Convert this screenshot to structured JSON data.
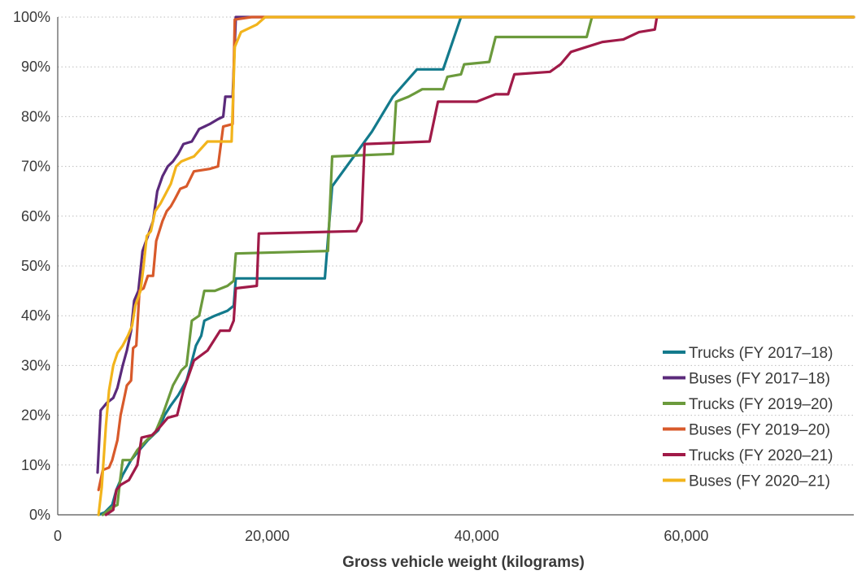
{
  "chart_data": {
    "type": "line",
    "title": "",
    "xlabel": "Gross vehicle weight (kilograms)",
    "ylabel": "",
    "xlim": [
      0,
      76000
    ],
    "ylim": [
      0,
      100
    ],
    "x_ticks": [
      0,
      20000,
      40000,
      60000
    ],
    "x_tick_labels": [
      "0",
      "20,000",
      "40,000",
      "60,000"
    ],
    "y_ticks": [
      0,
      10,
      20,
      30,
      40,
      50,
      60,
      70,
      80,
      90,
      100
    ],
    "y_tick_labels": [
      "0%",
      "10%",
      "20%",
      "30%",
      "40%",
      "50%",
      "60%",
      "70%",
      "80%",
      "90%",
      "100%"
    ],
    "grid": "horizontal dotted",
    "legend_position": "bottom-right",
    "series": [
      {
        "name": "Trucks (FY 2017–18)",
        "color": "#137a8c",
        "points": [
          [
            3900,
            0
          ],
          [
            4500,
            0.5
          ],
          [
            5200,
            2
          ],
          [
            5600,
            5
          ],
          [
            6200,
            8
          ],
          [
            7000,
            11
          ],
          [
            7800,
            13
          ],
          [
            8600,
            15
          ],
          [
            9600,
            17
          ],
          [
            10200,
            20
          ],
          [
            10800,
            22
          ],
          [
            11500,
            24
          ],
          [
            12300,
            27
          ],
          [
            12700,
            30
          ],
          [
            13200,
            34
          ],
          [
            13700,
            36
          ],
          [
            14000,
            39
          ],
          [
            15000,
            40
          ],
          [
            16200,
            41
          ],
          [
            16800,
            42
          ],
          [
            17000,
            47.5
          ],
          [
            25500,
            47.5
          ],
          [
            26200,
            66
          ],
          [
            30000,
            77
          ],
          [
            32000,
            84
          ],
          [
            34300,
            89.5
          ],
          [
            36800,
            89.5
          ],
          [
            38500,
            100
          ],
          [
            76000,
            100
          ]
        ]
      },
      {
        "name": "Buses (FY 2017–18)",
        "color": "#5b2a7b",
        "points": [
          [
            3800,
            8.5
          ],
          [
            4100,
            21
          ],
          [
            4700,
            22.5
          ],
          [
            5300,
            23.5
          ],
          [
            5700,
            25.5
          ],
          [
            6200,
            30
          ],
          [
            6600,
            33
          ],
          [
            7000,
            37
          ],
          [
            7300,
            43
          ],
          [
            7700,
            45
          ],
          [
            8100,
            53
          ],
          [
            8600,
            56
          ],
          [
            9100,
            59
          ],
          [
            9500,
            65
          ],
          [
            10000,
            68
          ],
          [
            10500,
            70
          ],
          [
            11000,
            71
          ],
          [
            11500,
            72.5
          ],
          [
            12000,
            74.5
          ],
          [
            12800,
            75
          ],
          [
            13500,
            77.5
          ],
          [
            14500,
            78.5
          ],
          [
            15300,
            79.5
          ],
          [
            15800,
            80
          ],
          [
            16000,
            84
          ],
          [
            16700,
            84
          ],
          [
            17000,
            100
          ],
          [
            76000,
            100
          ]
        ]
      },
      {
        "name": "Trucks (FY 2019–20)",
        "color": "#6b9a3c",
        "points": [
          [
            4300,
            0
          ],
          [
            5200,
            1.5
          ],
          [
            5700,
            2
          ],
          [
            5900,
            6
          ],
          [
            6200,
            11
          ],
          [
            7000,
            11
          ],
          [
            7600,
            13
          ],
          [
            8500,
            15
          ],
          [
            9300,
            16.5
          ],
          [
            10000,
            20
          ],
          [
            11000,
            26
          ],
          [
            11800,
            29
          ],
          [
            12300,
            30
          ],
          [
            12800,
            39
          ],
          [
            13500,
            40
          ],
          [
            14000,
            45
          ],
          [
            15000,
            45
          ],
          [
            16200,
            46
          ],
          [
            16800,
            47
          ],
          [
            17000,
            52.5
          ],
          [
            25800,
            53
          ],
          [
            26200,
            72
          ],
          [
            32000,
            72.5
          ],
          [
            32300,
            83
          ],
          [
            33500,
            84
          ],
          [
            34800,
            85.5
          ],
          [
            36800,
            85.5
          ],
          [
            37200,
            88
          ],
          [
            38500,
            88.5
          ],
          [
            38800,
            90.5
          ],
          [
            41200,
            91
          ],
          [
            41800,
            96
          ],
          [
            50500,
            96
          ],
          [
            51000,
            100
          ],
          [
            76000,
            100
          ]
        ]
      },
      {
        "name": "Buses (FY 2019–20)",
        "color": "#d85a2b",
        "points": [
          [
            3900,
            5
          ],
          [
            4300,
            9
          ],
          [
            4900,
            9.5
          ],
          [
            5200,
            11
          ],
          [
            5700,
            15
          ],
          [
            6000,
            20
          ],
          [
            6300,
            23
          ],
          [
            6600,
            26
          ],
          [
            7000,
            27
          ],
          [
            7200,
            33.5
          ],
          [
            7500,
            34
          ],
          [
            7800,
            45
          ],
          [
            8200,
            45.5
          ],
          [
            8600,
            48
          ],
          [
            9100,
            48
          ],
          [
            9400,
            55
          ],
          [
            10000,
            59
          ],
          [
            10400,
            61
          ],
          [
            10800,
            62
          ],
          [
            11200,
            63.5
          ],
          [
            11700,
            65.5
          ],
          [
            12300,
            66
          ],
          [
            13000,
            69
          ],
          [
            14500,
            69.5
          ],
          [
            15300,
            70
          ],
          [
            15800,
            78
          ],
          [
            16700,
            78.5
          ],
          [
            16900,
            99.5
          ],
          [
            18500,
            100
          ],
          [
            76000,
            100
          ]
        ]
      },
      {
        "name": "Trucks (FY 2020–21)",
        "color": "#a01a48",
        "points": [
          [
            4600,
            0
          ],
          [
            5300,
            1
          ],
          [
            5600,
            5
          ],
          [
            6000,
            6
          ],
          [
            6800,
            7
          ],
          [
            7600,
            10
          ],
          [
            8000,
            15.5
          ],
          [
            9000,
            16
          ],
          [
            9700,
            17.5
          ],
          [
            10500,
            19.5
          ],
          [
            11400,
            20
          ],
          [
            12000,
            25
          ],
          [
            13000,
            31
          ],
          [
            14300,
            33
          ],
          [
            15500,
            37
          ],
          [
            16400,
            37
          ],
          [
            16800,
            39
          ],
          [
            17000,
            45.5
          ],
          [
            19000,
            46
          ],
          [
            19200,
            56.5
          ],
          [
            28500,
            57
          ],
          [
            29000,
            59
          ],
          [
            29300,
            74.5
          ],
          [
            35500,
            75
          ],
          [
            36300,
            83
          ],
          [
            40000,
            83
          ],
          [
            41800,
            84.5
          ],
          [
            43000,
            84.5
          ],
          [
            43600,
            88.5
          ],
          [
            47000,
            89
          ],
          [
            48000,
            90.5
          ],
          [
            49000,
            93
          ],
          [
            50500,
            94
          ],
          [
            52000,
            95
          ],
          [
            54000,
            95.5
          ],
          [
            55500,
            97
          ],
          [
            57000,
            97.5
          ],
          [
            57200,
            100
          ],
          [
            76000,
            100
          ]
        ]
      },
      {
        "name": "Buses (FY 2020–21)",
        "color": "#f2b41c",
        "points": [
          [
            3900,
            0
          ],
          [
            4200,
            5.5
          ],
          [
            4600,
            18
          ],
          [
            4900,
            25
          ],
          [
            5300,
            30
          ],
          [
            5700,
            32.5
          ],
          [
            6200,
            34
          ],
          [
            6700,
            36
          ],
          [
            7100,
            38
          ],
          [
            7400,
            42
          ],
          [
            7900,
            45
          ],
          [
            8200,
            50
          ],
          [
            8500,
            56
          ],
          [
            8900,
            57
          ],
          [
            9300,
            61
          ],
          [
            9800,
            62.5
          ],
          [
            10300,
            64.5
          ],
          [
            10800,
            66.5
          ],
          [
            11300,
            70
          ],
          [
            11800,
            71
          ],
          [
            12400,
            71.5
          ],
          [
            13000,
            72
          ],
          [
            14300,
            75
          ],
          [
            15600,
            75
          ],
          [
            16600,
            75
          ],
          [
            16900,
            94
          ],
          [
            17500,
            97
          ],
          [
            19000,
            98.5
          ],
          [
            19800,
            100
          ],
          [
            76000,
            100
          ]
        ]
      }
    ]
  }
}
